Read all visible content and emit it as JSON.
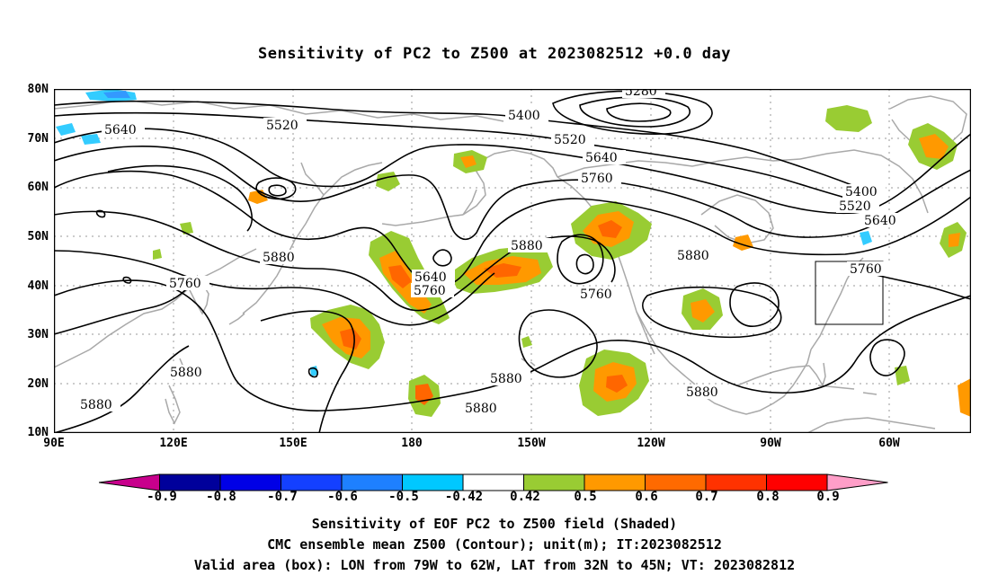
{
  "title": "Sensitivity of PC2 to Z500 at 2023082512 +0.0 day",
  "map": {
    "lat_labels": [
      "80N",
      "70N",
      "60N",
      "50N",
      "40N",
      "30N",
      "20N",
      "10N"
    ],
    "lon_labels": [
      "90E",
      "120E",
      "150E",
      "180",
      "150W",
      "120W",
      "90W",
      "60W"
    ],
    "contour_labels": [
      "5280",
      "5400",
      "5400",
      "5520",
      "5520",
      "5520",
      "5640",
      "5640",
      "5640",
      "5640",
      "5760",
      "5760",
      "5760",
      "5760",
      "5760",
      "5880",
      "5880",
      "5880",
      "5880",
      "5880",
      "5880",
      "5880",
      "5880"
    ],
    "valid_box": {
      "lon_from": "79W",
      "lon_to": "62W",
      "lat_from": "32N",
      "lat_to": "45N"
    },
    "colors": {
      "coastline": "#a9a9a9",
      "contour": "#000000",
      "gridline": "#9a9a9a",
      "shade_low": "#99cc33",
      "shade_mid": "#ff9900",
      "shade_high": "#ff6600",
      "shade_neg": "#33ccff",
      "shade_neg_mid": "#3399ff"
    }
  },
  "colorbar": {
    "labels": [
      "-0.9",
      "-0.8",
      "-0.7",
      "-0.6",
      "-0.5",
      "-0.42",
      "0.42",
      "0.5",
      "0.6",
      "0.7",
      "0.8",
      "0.9"
    ],
    "colors": [
      "#c8008c",
      "#00009b",
      "#0000e6",
      "#1440ff",
      "#1e80ff",
      "#00c8ff",
      "#ffffff",
      "#99cc33",
      "#ff9900",
      "#ff6a00",
      "#ff3200",
      "#ff0000",
      "#ff9ec8"
    ]
  },
  "captions": [
    "Sensitivity of EOF PC2 to Z500 field (Shaded)",
    "CMC ensemble mean Z500 (Contour); unit(m); IT:2023082512",
    "Valid area (box): LON from 79W to 62W, LAT from 32N to 45N; VT: 2023082812"
  ]
}
